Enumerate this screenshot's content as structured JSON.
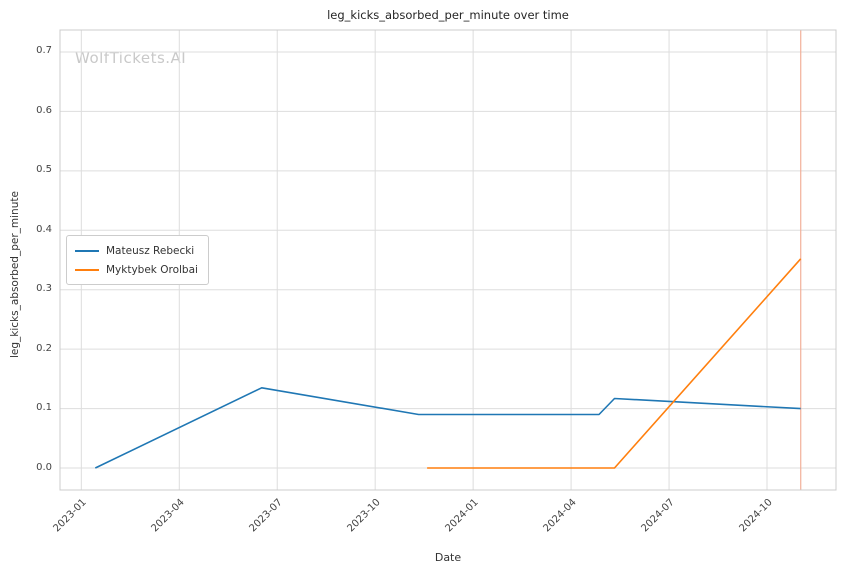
{
  "watermark": "WolfTickets.AI",
  "chart_data": {
    "type": "line",
    "title": "leg_kicks_absorbed_per_minute over time",
    "xlabel": "Date",
    "ylabel": "leg_kicks_absorbed_per_minute",
    "ylim": [
      -0.037,
      0.737
    ],
    "yticks": [
      0.0,
      0.1,
      0.2,
      0.3,
      0.4,
      0.5,
      0.6,
      0.7
    ],
    "xticks": [
      "2023-01",
      "2023-04",
      "2023-07",
      "2023-10",
      "2024-01",
      "2024-04",
      "2024-07",
      "2024-10"
    ],
    "grid": true,
    "grid_color": "#dddddd",
    "border_color": "#cccccc",
    "legend_position": "center left",
    "series": [
      {
        "name": "Mateusz Rebecki",
        "color": "#1f77b4",
        "points": [
          {
            "x": "2023-01-14",
            "y": 0.0
          },
          {
            "x": "2023-06-17",
            "y": 0.135
          },
          {
            "x": "2023-11-11",
            "y": 0.09
          },
          {
            "x": "2024-04-27",
            "y": 0.09
          },
          {
            "x": "2024-05-11",
            "y": 0.117
          },
          {
            "x": "2024-11-02",
            "y": 0.1
          }
        ]
      },
      {
        "name": "Myktybek Orolbai",
        "color": "#ff7f0e",
        "points": [
          {
            "x": "2023-11-19",
            "y": 0.0
          },
          {
            "x": "2024-05-11",
            "y": 0.0
          },
          {
            "x": "2024-11-02",
            "y": 0.352
          }
        ]
      }
    ],
    "vline": {
      "x": "2024-11-02",
      "color": "#f2b09a"
    }
  }
}
